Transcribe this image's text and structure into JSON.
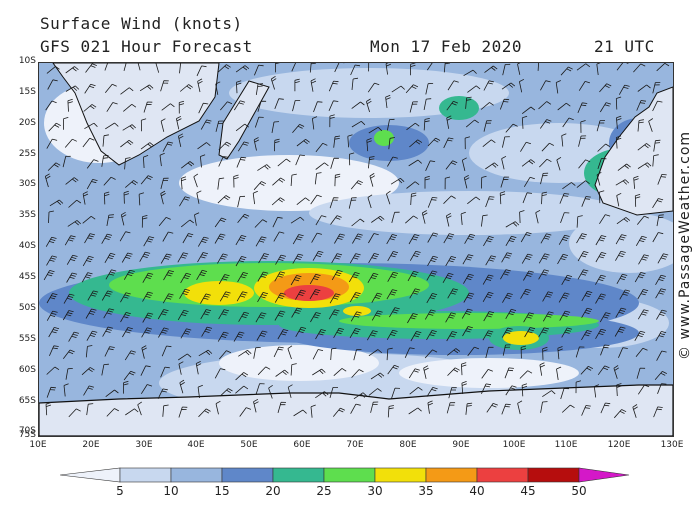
{
  "header": {
    "title": "Surface Wind (knots)",
    "subtitle": "GFS 021 Hour Forecast",
    "date": "Mon 17 Feb 2020",
    "time": "21 UTC"
  },
  "credit": "© www.PassageWeather.com",
  "axes": {
    "lat_labels": [
      "10S",
      "15S",
      "20S",
      "25S",
      "30S",
      "35S",
      "40S",
      "45S",
      "50S",
      "55S",
      "60S",
      "65S",
      "70S",
      "75S"
    ],
    "lon_labels": [
      "10E",
      "20E",
      "30E",
      "40E",
      "50E",
      "60E",
      "70E",
      "80E",
      "90E",
      "100E",
      "110E",
      "120E",
      "130E"
    ]
  },
  "legend": {
    "labels": [
      "5",
      "10",
      "15",
      "20",
      "25",
      "30",
      "35",
      "40",
      "45",
      "50"
    ],
    "colors": [
      "#eef2fa",
      "#c8d8ef",
      "#98b6de",
      "#5f87c9",
      "#35b890",
      "#5ede4e",
      "#f2e00a",
      "#f49a16",
      "#ec4040",
      "#b60d0d",
      "#d418c8"
    ]
  },
  "colors": {
    "ocean_base": "#c9d8ee",
    "land": "#dfe6f3",
    "coastline": "#111111"
  }
}
